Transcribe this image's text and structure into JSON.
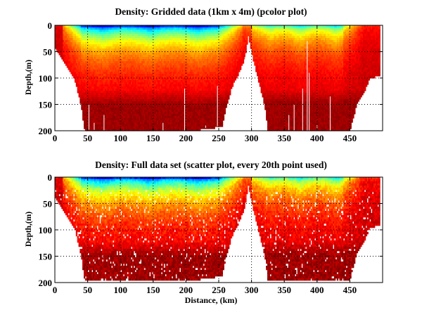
{
  "chart_data": [
    {
      "type": "heatmap",
      "title": "Density: Gridded data (1km x 4m) (pcolor plot)",
      "xlabel": "",
      "ylabel": "Depth,(m)",
      "xlim": [
        0,
        500
      ],
      "ylim": [
        200,
        0
      ],
      "xticks": [
        "0",
        "50",
        "100",
        "150",
        "200",
        "250",
        "300",
        "350",
        "400",
        "450"
      ],
      "yticks": [
        "0",
        "50",
        "100",
        "150",
        "200"
      ],
      "grid": "dotted",
      "colormap": "jet",
      "bottom_profile_km": [
        0,
        10,
        20,
        30,
        40,
        45,
        50,
        100,
        200,
        255,
        262,
        270,
        280,
        290,
        295,
        300,
        310,
        320,
        325,
        400,
        450,
        460,
        470,
        480,
        490,
        496
      ],
      "bottom_profile_depth_m": [
        40,
        60,
        80,
        100,
        150,
        195,
        198,
        200,
        200,
        190,
        150,
        115,
        90,
        60,
        20,
        50,
        100,
        150,
        198,
        200,
        198,
        150,
        130,
        100,
        95,
        95
      ],
      "surface_features": [
        {
          "range_km": [
            40,
            260
          ],
          "surface_color": "low-density (blue)"
        },
        {
          "range_km": [
            290,
            310
          ],
          "surface_color": "high (orange)"
        },
        {
          "range_km": [
            330,
            440
          ],
          "surface_color": "cyan/yellow"
        }
      ]
    },
    {
      "type": "scatter",
      "title": "Density: Full data set (scatter plot, every 20th point used)",
      "xlabel": "Distance, (km)",
      "ylabel": "Depth,(m)",
      "xlim": [
        0,
        500
      ],
      "ylim": [
        200,
        0
      ],
      "xticks": [
        "0",
        "50",
        "100",
        "150",
        "200",
        "250",
        "300",
        "350",
        "400",
        "450"
      ],
      "yticks": [
        "0",
        "50",
        "100",
        "150",
        "200"
      ],
      "grid": "dotted",
      "colormap": "jet"
    }
  ],
  "colors": {
    "deep": "#8b0000",
    "mid": "#e62000",
    "orange": "#ff9900",
    "yellow": "#ffee00",
    "cyan": "#33ccee",
    "blue": "#0033cc",
    "darkblue": "#000099"
  }
}
